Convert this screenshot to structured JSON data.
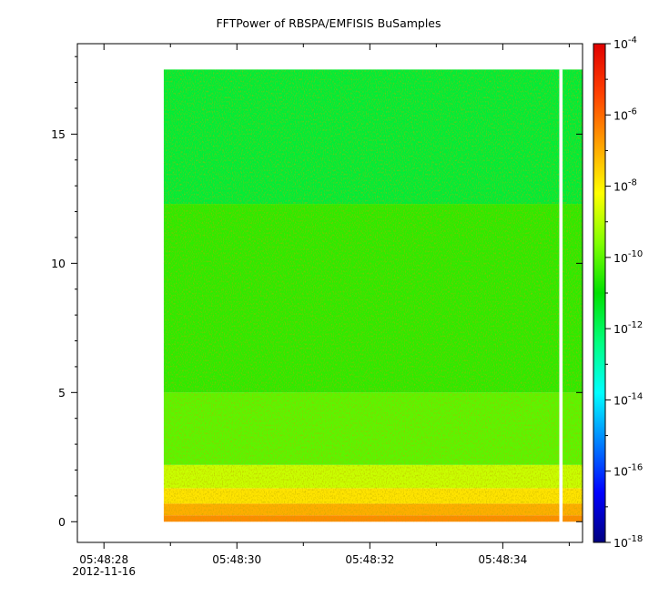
{
  "chart_data": {
    "type": "heatmap",
    "title": "FFTPower of RBSPA/EMFISIS  BuSamples",
    "xlabel": "",
    "ylabel": "",
    "x_ticks": [
      {
        "value": 28,
        "label": "05:48:28",
        "sublabel": "2012-11-16"
      },
      {
        "value": 30,
        "label": "05:48:30"
      },
      {
        "value": 32,
        "label": "05:48:32"
      },
      {
        "value": 34,
        "label": "05:48:34"
      }
    ],
    "x_minor_ticks": [
      29,
      31,
      33,
      35
    ],
    "xlim": [
      27.6,
      35.2
    ],
    "data_xrange": [
      28.9,
      35.2
    ],
    "gap_x": [
      34.85,
      34.9
    ],
    "y_ticks": [
      0,
      5,
      10,
      15
    ],
    "ylim": [
      -0.8,
      18.5
    ],
    "data_yrange": [
      0,
      17.5
    ],
    "colorbar": {
      "scale": "log",
      "range": [
        1e-18,
        0.0001
      ],
      "ticks": [
        {
          "value": 0.0001,
          "base": "10",
          "exp": "-4"
        },
        {
          "value": 1e-06,
          "base": "10",
          "exp": "-6"
        },
        {
          "value": 1e-08,
          "base": "10",
          "exp": "-8"
        },
        {
          "value": 1e-10,
          "base": "10",
          "exp": "-10"
        },
        {
          "value": 1e-12,
          "base": "10",
          "exp": "-12"
        },
        {
          "value": 1e-14,
          "base": "10",
          "exp": "-14"
        },
        {
          "value": 1e-16,
          "base": "10",
          "exp": "-16"
        },
        {
          "value": 1e-18,
          "base": "10",
          "exp": "-18"
        }
      ],
      "colors": [
        "#00007f",
        "#0000ff",
        "#0080ff",
        "#00ffff",
        "#00ff80",
        "#00e000",
        "#80ff00",
        "#ffff00",
        "#ffa000",
        "#ff4000",
        "#e00000"
      ]
    },
    "power_bands": [
      {
        "y": [
          0,
          0.25
        ],
        "log_power": -6.5
      },
      {
        "y": [
          0.25,
          0.7
        ],
        "log_power": -7.0
      },
      {
        "y": [
          0.7,
          1.3
        ],
        "log_power": -7.8
      },
      {
        "y": [
          1.3,
          2.2
        ],
        "log_power": -8.8
      },
      {
        "y": [
          2.2,
          5.0
        ],
        "log_power": -10.0
      },
      {
        "y": [
          5.0,
          12.3
        ],
        "log_power": -10.5
      },
      {
        "y": [
          12.3,
          17.5
        ],
        "log_power": -11.6
      }
    ]
  }
}
